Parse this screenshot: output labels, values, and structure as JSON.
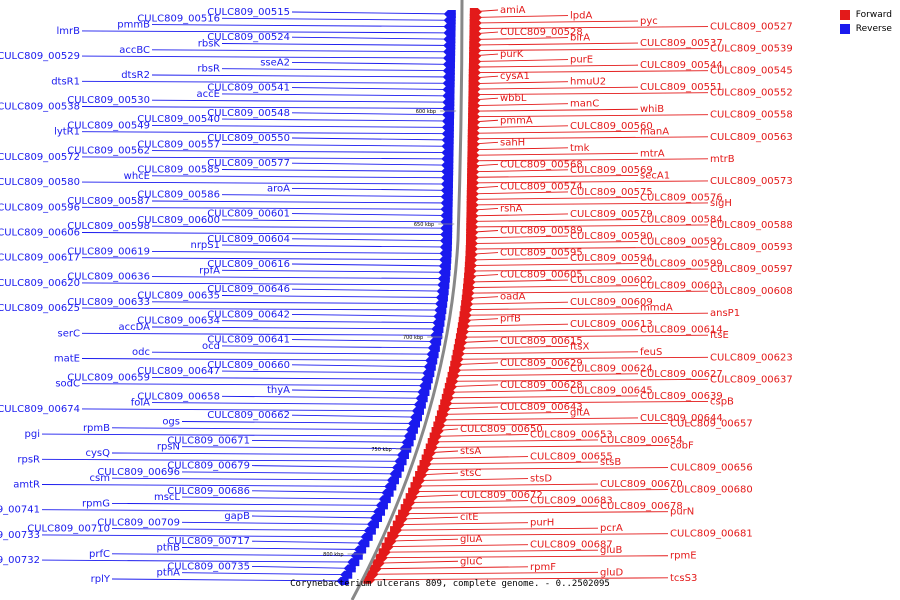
{
  "colors": {
    "forward": "#e31a1a",
    "reverse": "#1a1aee",
    "backbone": "#888888"
  },
  "legend": [
    {
      "label": "Forward",
      "color": "#e31a1a"
    },
    {
      "label": "Reverse",
      "color": "#1a1aee"
    }
  ],
  "caption": "Corynebacterium ulcerans 809, complete genome. - 0..2502095",
  "scale_ticks": [
    "600 kbp",
    "650 kbp",
    "700 kbp",
    "750 kbp",
    "800 kbp"
  ],
  "reverse_labels": [
    "CULC809_00515",
    "CULC809_00516",
    "pmmB",
    "lmrB",
    "CULC809_00524",
    "rbsK",
    "accBC",
    "CULC809_00529",
    "sseA2",
    "rbsR",
    "dtsR2",
    "dtsR1",
    "CULC809_00541",
    "accE",
    "CULC809_00530",
    "CULC809_00538",
    "CULC809_00548",
    "CULC809_00540",
    "CULC809_00549",
    "lytR1",
    "CULC809_00550",
    "CULC809_00557",
    "CULC809_00562",
    "CULC809_00572",
    "CULC809_00577",
    "CULC809_00585",
    "whcE",
    "CULC809_00580",
    "aroA",
    "CULC809_00586",
    "CULC809_00587",
    "CULC809_00596",
    "CULC809_00601",
    "CULC809_00600",
    "CULC809_00598",
    "CULC809_00606",
    "CULC809_00604",
    "nrpS1",
    "CULC809_00619",
    "CULC809_00617",
    "CULC809_00616",
    "rpfA",
    "CULC809_00636",
    "CULC809_00620",
    "CULC809_00646",
    "CULC809_00635",
    "CULC809_00633",
    "CULC809_00625",
    "CULC809_00642",
    "CULC809_00634",
    "accDA",
    "serC",
    "CULC809_00641",
    "ocd",
    "odc",
    "matE",
    "CULC809_00660",
    "CULC809_00647",
    "CULC809_00659",
    "sodC",
    "thyA",
    "CULC809_00658",
    "folA",
    "CULC809_00674",
    "CULC809_00662",
    "ogs",
    "rpmB",
    "pgi",
    "CULC809_00671",
    "rpsN",
    "cysQ",
    "rpsR",
    "CULC809_00679",
    "CULC809_00696",
    "csm",
    "amtR",
    "CULC809_00686",
    "mscL",
    "rpmG",
    "CULC809_00741",
    "gapB",
    "CULC809_00709",
    "CULC809_00710",
    "CULC809_00733",
    "CULC809_00717",
    "pthB",
    "prfC",
    "CULC809_00732",
    "CULC809_00735",
    "pthA",
    "rplY"
  ],
  "forward_labels": [
    "amiA",
    "lpdA",
    "pyc",
    "CULC809_00527",
    "CULC809_00528",
    "birA",
    "CULC809_00537",
    "CULC809_00539",
    "purK",
    "purE",
    "CULC809_00544",
    "CULC809_00545",
    "cysA1",
    "hmuU2",
    "CULC809_00551",
    "CULC809_00552",
    "wbbL",
    "manC",
    "whiB",
    "CULC809_00558",
    "pmmA",
    "CULC809_00560",
    "manA",
    "CULC809_00563",
    "sahH",
    "tmk",
    "mtrA",
    "mtrB",
    "CULC809_00568",
    "CULC809_00569",
    "secA1",
    "CULC809_00573",
    "CULC809_00574",
    "CULC809_00575",
    "CULC809_00576",
    "sigH",
    "rshA",
    "CULC809_00579",
    "CULC809_00584",
    "CULC809_00588",
    "CULC809_00589",
    "CULC809_00590",
    "CULC809_00592",
    "CULC809_00593",
    "CULC809_00595",
    "CULC809_00594",
    "CULC809_00599",
    "CULC809_00597",
    "CULC809_00605",
    "CULC809_00602",
    "CULC809_00603",
    "CULC809_00608",
    "oadA",
    "CULC809_00609",
    "mmdA",
    "ansP1",
    "prfB",
    "CULC809_00613",
    "CULC809_00614",
    "ftsE",
    "CULC809_00615",
    "ftsX",
    "feuS",
    "CULC809_00623",
    "CULC809_00629",
    "CULC809_00624",
    "CULC809_00627",
    "CULC809_00637",
    "CULC809_00628",
    "CULC809_00645",
    "CULC809_00639",
    "cspB",
    "CULC809_00643",
    "gltA",
    "CULC809_00644",
    "CULC809_00657",
    "CULC809_00650",
    "CULC809_00653",
    "CULC809_00654",
    "cobF",
    "stsA",
    "CULC809_00655",
    "stsB",
    "CULC809_00656",
    "stsC",
    "stsD",
    "CULC809_00670",
    "CULC809_00680",
    "CULC809_00672",
    "CULC809_00683",
    "CULC809_00678",
    "purN",
    "citE",
    "purH",
    "pcrA",
    "CULC809_00681",
    "gluA",
    "CULC809_00687",
    "gluB",
    "rpmE",
    "gluC",
    "rpmF",
    "gluD",
    "tcsS3"
  ]
}
